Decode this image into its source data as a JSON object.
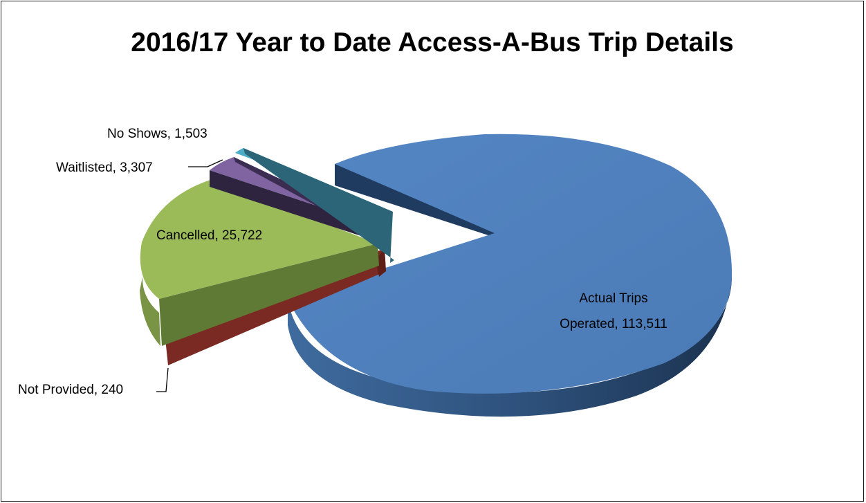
{
  "chart_data": {
    "type": "pie",
    "style": "3d-exploded",
    "title": "2016/17 Year to Date Access-A-Bus Trip Details",
    "slices": [
      {
        "name": "Actual Trips Operated",
        "value": 113511,
        "label_line1": "Actual Trips",
        "label_line2": "Operated, 113,511",
        "color": "#4f81bd"
      },
      {
        "name": "Not Provided",
        "value": 240,
        "label_line1": "Not Provided, 240",
        "color": "#8b3a32"
      },
      {
        "name": "Cancelled",
        "value": 25722,
        "label_line1": "Cancelled, 25,722",
        "color": "#9bbb59"
      },
      {
        "name": "Waitlisted",
        "value": 3307,
        "label_line1": "Waitlisted, 3,307",
        "color": "#8064a2"
      },
      {
        "name": "No Shows",
        "value": 1503,
        "label_line1": "No Shows, 1,503",
        "color": "#4bacc6"
      }
    ],
    "legend": "none"
  }
}
